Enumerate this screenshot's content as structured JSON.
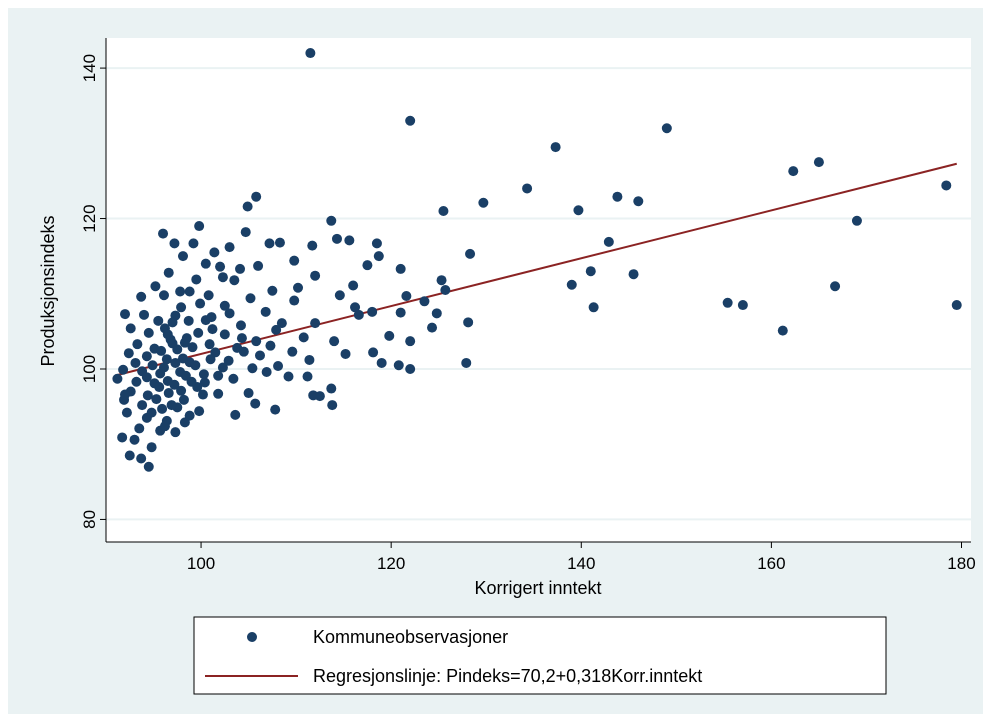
{
  "chart_data": {
    "type": "scatter",
    "xlabel": "Korrigert inntekt",
    "ylabel": "Produksjonsindeks",
    "xlim": [
      90,
      181
    ],
    "ylim": [
      77,
      144
    ],
    "xticks": [
      100,
      120,
      140,
      160,
      180
    ],
    "yticks": [
      80,
      100,
      120,
      140
    ],
    "grid": "horizontal",
    "legend_position": "bottom",
    "colors": {
      "background": "#eaf2f3",
      "plot": "#ffffff",
      "points": "#1a3f66",
      "line": "#8b2323",
      "grid": "#eaf2f3"
    },
    "series": [
      {
        "name": "Kommuneobservasjoner",
        "marker": "circle",
        "points": [
          [
            111.5,
            142
          ],
          [
            122,
            133
          ],
          [
            149,
            132
          ],
          [
            137.3,
            129.5
          ],
          [
            165,
            127.5
          ],
          [
            162.3,
            126.3
          ],
          [
            178.4,
            124.4
          ],
          [
            134.3,
            124
          ],
          [
            143.8,
            122.9
          ],
          [
            146,
            122.3
          ],
          [
            129.7,
            122.1
          ],
          [
            105.8,
            122.9
          ],
          [
            104.9,
            121.6
          ],
          [
            139.7,
            121.1
          ],
          [
            125.5,
            121
          ],
          [
            169,
            119.7
          ],
          [
            113.7,
            119.7
          ],
          [
            96,
            118
          ],
          [
            99.8,
            119
          ],
          [
            104.7,
            118.2
          ],
          [
            97.2,
            116.7
          ],
          [
            99.2,
            116.7
          ],
          [
            101.4,
            115.5
          ],
          [
            103,
            116.2
          ],
          [
            107.2,
            116.7
          ],
          [
            108.3,
            116.8
          ],
          [
            109.8,
            114.4
          ],
          [
            111.7,
            116.4
          ],
          [
            114.3,
            117.3
          ],
          [
            115.6,
            117.1
          ],
          [
            118.5,
            116.7
          ],
          [
            142.9,
            116.9
          ],
          [
            128.3,
            115.3
          ],
          [
            98.1,
            115
          ],
          [
            100.5,
            114
          ],
          [
            102,
            113.6
          ],
          [
            106,
            113.7
          ],
          [
            112,
            112.4
          ],
          [
            117.5,
            113.8
          ],
          [
            121,
            113.3
          ],
          [
            141,
            113
          ],
          [
            145.5,
            112.6
          ],
          [
            96.6,
            112.8
          ],
          [
            99.5,
            111.9
          ],
          [
            95.2,
            111
          ],
          [
            97.8,
            110.3
          ],
          [
            103.5,
            111.8
          ],
          [
            107.5,
            110.4
          ],
          [
            110.2,
            110.8
          ],
          [
            116,
            111.1
          ],
          [
            118.7,
            115
          ],
          [
            125.3,
            111.8
          ],
          [
            166.7,
            111
          ],
          [
            139,
            111.2
          ],
          [
            93.7,
            109.6
          ],
          [
            96.1,
            109.8
          ],
          [
            98.8,
            110.3
          ],
          [
            102.5,
            108.4
          ],
          [
            105.2,
            109.4
          ],
          [
            109.8,
            109.1
          ],
          [
            114.6,
            109.8
          ],
          [
            116.2,
            108.2
          ],
          [
            121.6,
            109.7
          ],
          [
            123.5,
            109
          ],
          [
            125.7,
            110.5
          ],
          [
            141.3,
            108.2
          ],
          [
            155.4,
            108.8
          ],
          [
            157,
            108.5
          ],
          [
            179.5,
            108.5
          ],
          [
            92,
            107.3
          ],
          [
            94,
            107.2
          ],
          [
            95.5,
            106.4
          ],
          [
            97.3,
            107.1
          ],
          [
            100.5,
            106.5
          ],
          [
            103,
            107.4
          ],
          [
            106.8,
            107.6
          ],
          [
            108.5,
            106.1
          ],
          [
            112,
            106.1
          ],
          [
            116.6,
            107.2
          ],
          [
            118,
            107.6
          ],
          [
            121,
            107.5
          ],
          [
            124.8,
            107.4
          ],
          [
            128.1,
            106.2
          ],
          [
            124.3,
            105.5
          ],
          [
            92.6,
            105.4
          ],
          [
            94.5,
            104.8
          ],
          [
            96.2,
            105.4
          ],
          [
            98.5,
            104.1
          ],
          [
            101.2,
            105.3
          ],
          [
            104.3,
            104.1
          ],
          [
            107.9,
            105.2
          ],
          [
            110.8,
            104.2
          ],
          [
            114,
            103.7
          ],
          [
            119.8,
            104.4
          ],
          [
            122,
            103.7
          ],
          [
            161.2,
            105.1
          ],
          [
            93.3,
            103.3
          ],
          [
            95.1,
            102.7
          ],
          [
            97,
            103.4
          ],
          [
            99.1,
            102.9
          ],
          [
            101.5,
            102.2
          ],
          [
            103.8,
            102.8
          ],
          [
            106.2,
            101.8
          ],
          [
            109.6,
            102.3
          ],
          [
            115.2,
            102
          ],
          [
            118.1,
            102.2
          ],
          [
            92.4,
            102.1
          ],
          [
            94.3,
            101.7
          ],
          [
            96.4,
            101.3
          ],
          [
            98.8,
            100.9
          ],
          [
            102.3,
            100.2
          ],
          [
            105.4,
            100.1
          ],
          [
            108.1,
            100.4
          ],
          [
            111.4,
            101.2
          ],
          [
            119,
            100.8
          ],
          [
            120.8,
            100.5
          ],
          [
            122,
            100
          ],
          [
            127.9,
            100.8
          ],
          [
            91.8,
            99.9
          ],
          [
            93.8,
            99.7
          ],
          [
            95.7,
            99.4
          ],
          [
            97.8,
            99.6
          ],
          [
            100.3,
            99.3
          ],
          [
            103.4,
            98.7
          ],
          [
            106.9,
            99.6
          ],
          [
            109.2,
            99
          ],
          [
            111.2,
            99
          ],
          [
            91.2,
            98.7
          ],
          [
            93.2,
            98.3
          ],
          [
            95.1,
            98.1
          ],
          [
            97.2,
            97.9
          ],
          [
            99.6,
            97.6
          ],
          [
            101.8,
            96.7
          ],
          [
            105,
            96.8
          ],
          [
            113.7,
            97.4
          ],
          [
            92.6,
            97
          ],
          [
            94.4,
            96.5
          ],
          [
            96.6,
            96.8
          ],
          [
            98.2,
            95.9
          ],
          [
            111.8,
            96.5
          ],
          [
            112.5,
            96.4
          ],
          [
            91.9,
            95.9
          ],
          [
            93.8,
            95.2
          ],
          [
            95.9,
            94.7
          ],
          [
            97.5,
            94.9
          ],
          [
            99.8,
            94.4
          ],
          [
            103.6,
            93.9
          ],
          [
            105.7,
            95.4
          ],
          [
            107.8,
            94.6
          ],
          [
            113.8,
            95.2
          ],
          [
            92.2,
            94.2
          ],
          [
            94.3,
            93.5
          ],
          [
            96.4,
            93.1
          ],
          [
            98.3,
            92.9
          ],
          [
            93.5,
            92.1
          ],
          [
            95.7,
            91.8
          ],
          [
            97.3,
            91.6
          ],
          [
            91.7,
            90.9
          ],
          [
            93,
            90.6
          ],
          [
            94.8,
            89.6
          ],
          [
            92.5,
            88.5
          ],
          [
            93.7,
            88.1
          ],
          [
            94.5,
            87
          ],
          [
            96.8,
            103.9
          ],
          [
            97.5,
            102.6
          ],
          [
            98.1,
            101.4
          ],
          [
            96.1,
            100.2
          ],
          [
            97.3,
            100.8
          ],
          [
            98.4,
            99.1
          ],
          [
            96.5,
            98.4
          ],
          [
            97.9,
            97.1
          ],
          [
            99,
            98.3
          ],
          [
            95.3,
            96
          ],
          [
            96.9,
            95.2
          ],
          [
            98.8,
            93.8
          ],
          [
            100.2,
            96.6
          ],
          [
            101,
            101.3
          ],
          [
            100.9,
            103.3
          ],
          [
            99.7,
            104.8
          ],
          [
            98.7,
            106.4
          ],
          [
            97.9,
            108.2
          ],
          [
            100.8,
            109.8
          ],
          [
            102.3,
            112.2
          ],
          [
            104.1,
            113.3
          ],
          [
            96.5,
            104.6
          ],
          [
            95.8,
            102.4
          ],
          [
            94.9,
            100.5
          ],
          [
            94.3,
            98.9
          ],
          [
            95.6,
            97.6
          ],
          [
            99.4,
            100.5
          ],
          [
            100.4,
            98.2
          ],
          [
            101.8,
            99.1
          ],
          [
            102.9,
            101.1
          ],
          [
            104.5,
            102.3
          ],
          [
            105.8,
            103.7
          ],
          [
            107.3,
            103.1
          ],
          [
            104.2,
            105.8
          ],
          [
            102.5,
            104.6
          ],
          [
            101.1,
            106.9
          ],
          [
            99.9,
            108.7
          ],
          [
            98.3,
            103.5
          ],
          [
            97,
            106.2
          ],
          [
            93.1,
            100.8
          ],
          [
            92,
            96.6
          ],
          [
            94.8,
            94.2
          ],
          [
            96.2,
            92.4
          ]
        ]
      },
      {
        "name": "Regresjonslinje: Pindeks=70,2+0,318Korr.inntekt",
        "type": "line",
        "intercept": 70.2,
        "slope": 0.318,
        "x_range": [
          91,
          179.5
        ]
      }
    ]
  }
}
